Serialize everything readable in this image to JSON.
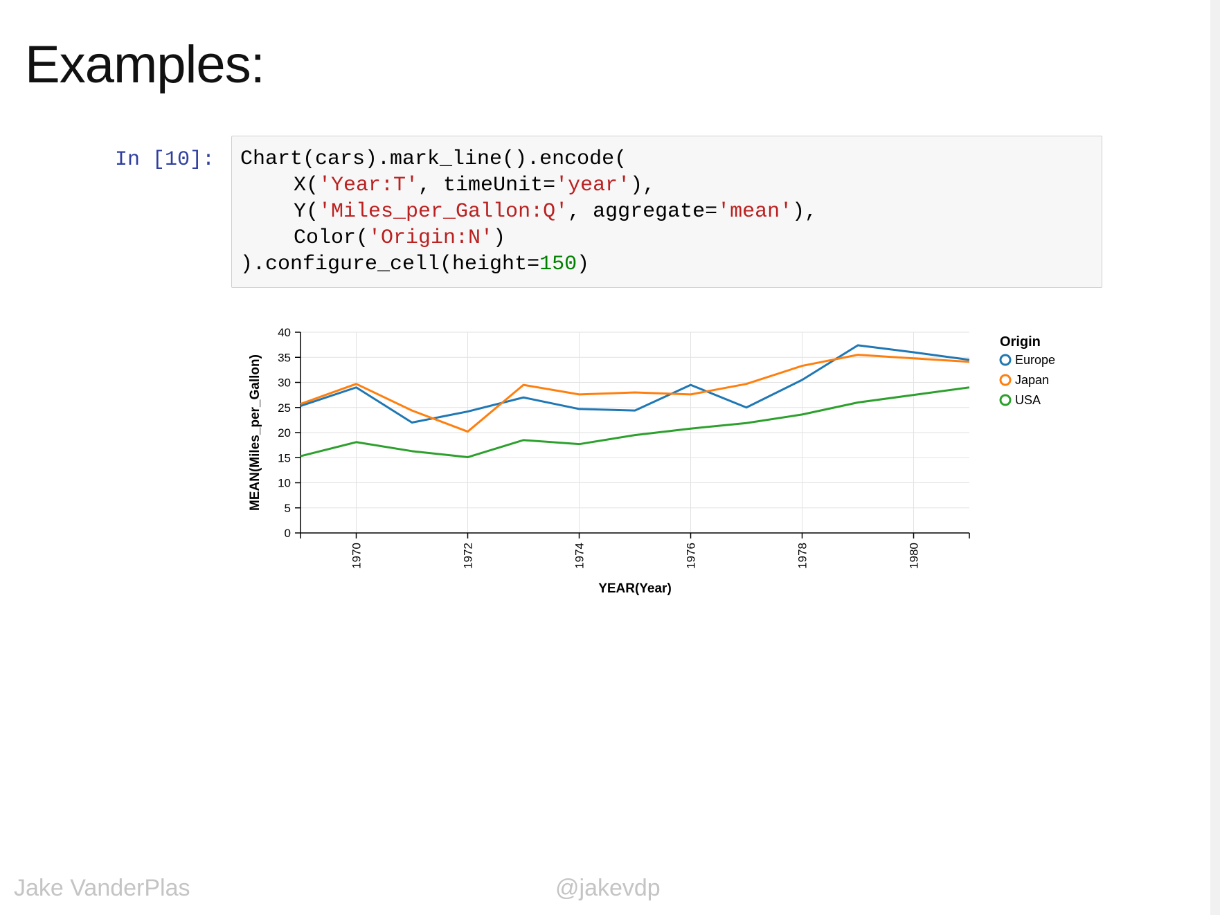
{
  "slide": {
    "title": "Examples:"
  },
  "cell": {
    "prompt": "In [10]:",
    "code": {
      "l1": "Chart(cars).mark_line().encode(",
      "l2_pre": "X(",
      "l2_str1": "'Year:T'",
      "l2_mid": ", timeUnit=",
      "l2_str2": "'year'",
      "l2_post": "),",
      "l3_pre": "Y(",
      "l3_str1": "'Miles_per_Gallon:Q'",
      "l3_mid": ", aggregate=",
      "l3_str2": "'mean'",
      "l3_post": "),",
      "l4_pre": "Color(",
      "l4_str1": "'Origin:N'",
      "l4_post": ")",
      "l5_pre": ").configure_cell(height=",
      "l5_num": "150",
      "l5_post": ")"
    }
  },
  "chart_data": {
    "type": "line",
    "title": "",
    "xlabel": "YEAR(Year)",
    "ylabel": "MEAN(Miles_per_Gallon)",
    "x": [
      1969,
      1970,
      1971,
      1972,
      1973,
      1974,
      1975,
      1976,
      1977,
      1978,
      1979,
      1980,
      1981
    ],
    "xlim": [
      1969,
      1981
    ],
    "ylim": [
      0,
      40
    ],
    "x_ticks": [
      "1970",
      "1972",
      "1974",
      "1976",
      "1978",
      "1980"
    ],
    "y_ticks": [
      "0",
      "5",
      "10",
      "15",
      "20",
      "25",
      "30",
      "35",
      "40"
    ],
    "grid": true,
    "legend": {
      "title": "Origin",
      "placement": "right"
    },
    "series": [
      {
        "name": "Europe",
        "color": "#1f77b4",
        "values": [
          25.3,
          29.0,
          22.0,
          24.2,
          27.0,
          24.7,
          24.4,
          29.5,
          25.0,
          30.5,
          37.4,
          36.0,
          34.5
        ]
      },
      {
        "name": "Japan",
        "color": "#ff7f0e",
        "values": [
          25.7,
          29.7,
          24.4,
          20.2,
          29.5,
          27.6,
          28.0,
          27.6,
          29.7,
          33.3,
          35.5,
          34.8,
          34.1
        ]
      },
      {
        "name": "USA",
        "color": "#2ca02c",
        "values": [
          15.3,
          18.1,
          16.3,
          15.1,
          18.5,
          17.7,
          19.5,
          20.8,
          21.9,
          23.6,
          26.0,
          27.5,
          29.0
        ]
      }
    ]
  },
  "footer": {
    "author": "Jake VanderPlas",
    "handle": "@jakevdp"
  }
}
